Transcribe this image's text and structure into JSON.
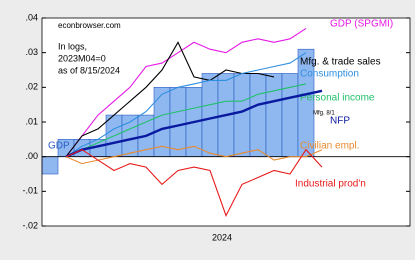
{
  "chart_data": {
    "type": "line",
    "annotations": [
      "econbrowser.com",
      "In logs,",
      "2023M04=0",
      "as of 8/15/2024",
      "Mfg. 8/1"
    ],
    "categories": [
      null,
      null,
      null,
      null,
      null,
      null,
      null,
      null,
      null,
      null,
      "2024",
      null,
      null,
      null,
      null,
      null,
      null,
      null,
      null,
      null,
      null,
      null,
      null
    ],
    "ylim": [
      -0.02,
      0.04
    ],
    "yticks": [
      {
        "value": 0.04,
        "label": ".04"
      },
      {
        "value": 0.03,
        "label": ".03"
      },
      {
        "value": 0.02,
        "label": ".02"
      },
      {
        "value": 0.01,
        "label": ".01"
      },
      {
        "value": 0,
        "label": ".00"
      },
      {
        "value": -0.01,
        "label": "-.01"
      },
      {
        "value": -0.02,
        "label": "-.02"
      }
    ],
    "bars": {
      "name": "GDP",
      "color": "#8fb8f0",
      "values": [
        -0.005,
        0.005,
        0.005,
        0.005,
        0.012,
        0.012,
        0.012,
        0.02,
        0.02,
        0.02,
        0.024,
        0.024,
        0.024,
        0.024,
        0.024,
        0.024,
        0.031,
        null,
        null,
        null,
        null,
        null,
        null
      ]
    },
    "series": [
      {
        "name": "GDP (SPGMI)",
        "color": "#e619e6",
        "values": [
          null,
          0,
          0.006,
          0.012,
          0.016,
          0.02,
          0.026,
          0.027,
          0.03,
          0.033,
          0.031,
          0.03,
          0.033,
          0.034,
          0.033,
          0.034,
          0.037,
          null,
          null,
          null,
          null,
          null,
          null
        ]
      },
      {
        "name": "Mfg. & trade sales",
        "color": "#000000",
        "values": [
          null,
          0,
          0.006,
          0.008,
          0.012,
          0.016,
          0.02,
          0.025,
          0.033,
          0.023,
          0.022,
          0.025,
          0.024,
          0.024,
          0.023,
          null,
          null,
          null,
          null,
          null,
          null,
          null,
          null
        ]
      },
      {
        "name": "Consumption",
        "color": "#2f8fe0",
        "values": [
          null,
          0,
          0.003,
          0.005,
          0.008,
          0.01,
          0.013,
          0.018,
          0.02,
          0.021,
          0.022,
          0.022,
          0.024,
          0.025,
          0.026,
          0.027,
          0.03,
          null,
          null,
          null,
          null,
          null,
          null
        ]
      },
      {
        "name": "Personal income",
        "color": "#22c06a",
        "values": [
          null,
          0,
          0.002,
          0.004,
          0.006,
          0.008,
          0.01,
          0.012,
          0.013,
          0.014,
          0.015,
          0.016,
          0.016,
          0.018,
          0.019,
          0.02,
          0.021,
          null,
          null,
          null,
          null,
          null,
          null
        ]
      },
      {
        "name": "NFP",
        "color": "#0a1aa0",
        "values": [
          null,
          0,
          0.002,
          0.003,
          0.004,
          0.005,
          0.006,
          0.008,
          0.009,
          0.01,
          0.011,
          0.012,
          0.013,
          0.015,
          0.016,
          0.017,
          0.018,
          0.019,
          null,
          null,
          null,
          null,
          null
        ]
      },
      {
        "name": "Civilian empl.",
        "color": "#e88a2e",
        "values": [
          null,
          0,
          -0.002,
          -0.001,
          0,
          0.001,
          0.002,
          0.003,
          0.002,
          0.003,
          0.001,
          0,
          0.001,
          0.002,
          -0.001,
          0,
          0,
          0.002,
          null,
          null,
          null,
          null,
          null
        ]
      },
      {
        "name": "Industrial prod'n",
        "color": "#e81a1a",
        "values": [
          null,
          0,
          0.002,
          -0.001,
          -0.004,
          -0.002,
          -0.003,
          -0.008,
          -0.004,
          -0.003,
          -0.004,
          -0.017,
          -0.008,
          -0.006,
          -0.004,
          -0.005,
          0.002,
          -0.003,
          null,
          null,
          null,
          null,
          null
        ]
      }
    ]
  }
}
